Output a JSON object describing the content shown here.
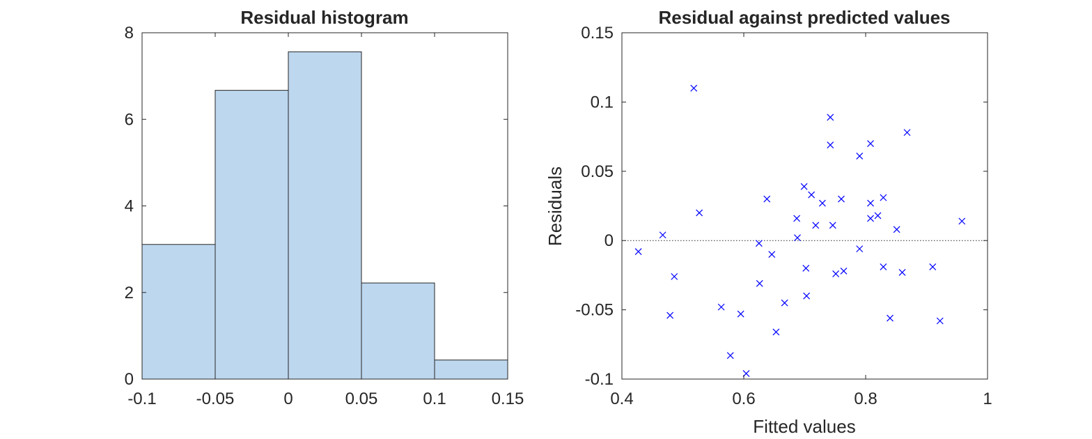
{
  "chart_data": [
    {
      "type": "bar",
      "title": "Residual histogram",
      "xlabel": "",
      "ylabel": "",
      "bin_edges": [
        -0.1,
        -0.05,
        0,
        0.05,
        0.1,
        0.15
      ],
      "values": [
        3.11,
        6.67,
        7.56,
        2.22,
        0.44
      ],
      "xlim": [
        -0.1,
        0.15
      ],
      "ylim": [
        0,
        8
      ],
      "xticks": [
        -0.1,
        -0.05,
        0,
        0.05,
        0.1,
        0.15
      ],
      "xtick_labels": [
        "-0.1",
        "-0.05",
        "0",
        "0.05",
        "0.1",
        "0.15"
      ],
      "yticks": [
        0,
        2,
        4,
        6,
        8
      ],
      "ytick_labels": [
        "0",
        "2",
        "4",
        "6",
        "8"
      ],
      "colors": {
        "bar": "#bdd7ee",
        "edge": "#262626"
      }
    },
    {
      "type": "scatter",
      "title": "Residual against predicted values",
      "xlabel": "Fitted values",
      "ylabel": "Residuals",
      "xlim": [
        0.4,
        1
      ],
      "ylim": [
        -0.1,
        0.15
      ],
      "xticks": [
        0.4,
        0.6,
        0.8,
        1
      ],
      "xtick_labels": [
        "0.4",
        "0.6",
        "0.8",
        "1"
      ],
      "yticks": [
        -0.1,
        -0.05,
        0,
        0.05,
        0.1,
        0.15
      ],
      "ytick_labels": [
        "-0.1",
        "-0.05",
        "0",
        "0.05",
        "0.1",
        "0.15"
      ],
      "reference_line_y": 0,
      "marker": "x",
      "colors": {
        "marker": "#0000ff"
      },
      "points": [
        [
          0.427,
          -0.008
        ],
        [
          0.467,
          0.004
        ],
        [
          0.479,
          -0.054
        ],
        [
          0.486,
          -0.026
        ],
        [
          0.518,
          0.11
        ],
        [
          0.527,
          0.02
        ],
        [
          0.563,
          -0.048
        ],
        [
          0.578,
          -0.083
        ],
        [
          0.595,
          -0.053
        ],
        [
          0.604,
          -0.096
        ],
        [
          0.625,
          -0.002
        ],
        [
          0.626,
          -0.031
        ],
        [
          0.638,
          0.03
        ],
        [
          0.646,
          -0.01
        ],
        [
          0.653,
          -0.066
        ],
        [
          0.667,
          -0.045
        ],
        [
          0.687,
          0.016
        ],
        [
          0.688,
          0.002
        ],
        [
          0.699,
          0.039
        ],
        [
          0.702,
          -0.02
        ],
        [
          0.703,
          -0.04
        ],
        [
          0.711,
          0.033
        ],
        [
          0.718,
          0.011
        ],
        [
          0.729,
          0.027
        ],
        [
          0.742,
          0.089
        ],
        [
          0.742,
          0.069
        ],
        [
          0.746,
          0.011
        ],
        [
          0.751,
          -0.024
        ],
        [
          0.76,
          0.03
        ],
        [
          0.764,
          -0.022
        ],
        [
          0.79,
          0.061
        ],
        [
          0.79,
          -0.006
        ],
        [
          0.808,
          0.07
        ],
        [
          0.808,
          0.027
        ],
        [
          0.808,
          0.016
        ],
        [
          0.82,
          0.018
        ],
        [
          0.829,
          0.031
        ],
        [
          0.829,
          -0.019
        ],
        [
          0.84,
          -0.056
        ],
        [
          0.851,
          0.008
        ],
        [
          0.86,
          -0.023
        ],
        [
          0.868,
          0.078
        ],
        [
          0.91,
          -0.019
        ],
        [
          0.922,
          -0.058
        ],
        [
          0.958,
          0.014
        ]
      ]
    }
  ]
}
